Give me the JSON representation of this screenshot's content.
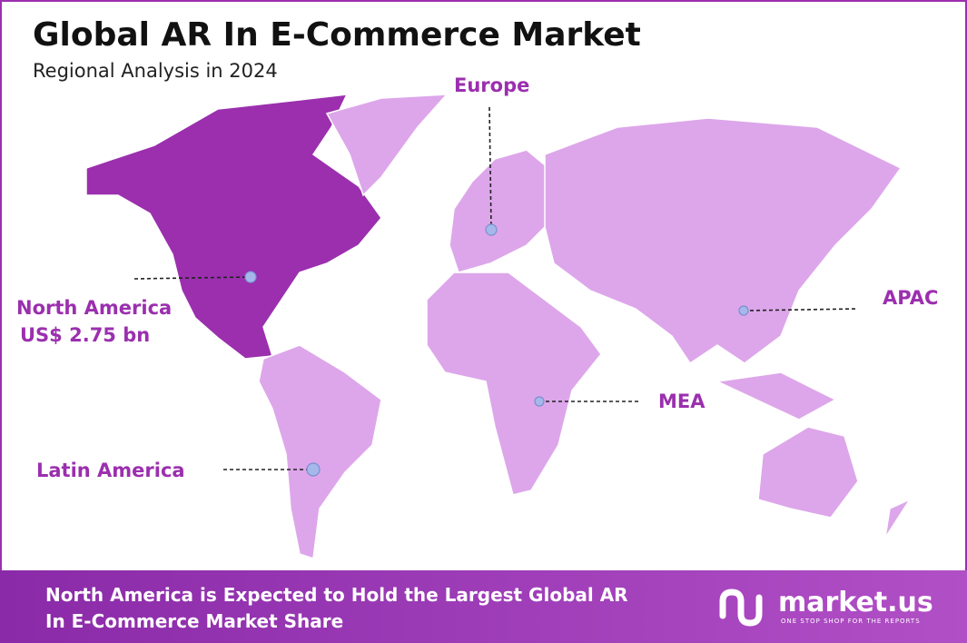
{
  "header": {
    "title": "Global AR In E-Commerce Market",
    "subtitle": "Regional Analysis in 2024"
  },
  "regions": [
    {
      "label": "North America",
      "value": "US$ 2.75 bn"
    },
    {
      "label": "Europe"
    },
    {
      "label": "APAC"
    },
    {
      "label": "MEA"
    },
    {
      "label": "Latin America"
    }
  ],
  "footer": {
    "lines": [
      "North America is Expected to Hold the Largest Global AR",
      "In E-Commerce Market Share"
    ],
    "logo": "market.us",
    "tagline": "ONE STOP SHOP FOR THE REPORTS"
  }
}
